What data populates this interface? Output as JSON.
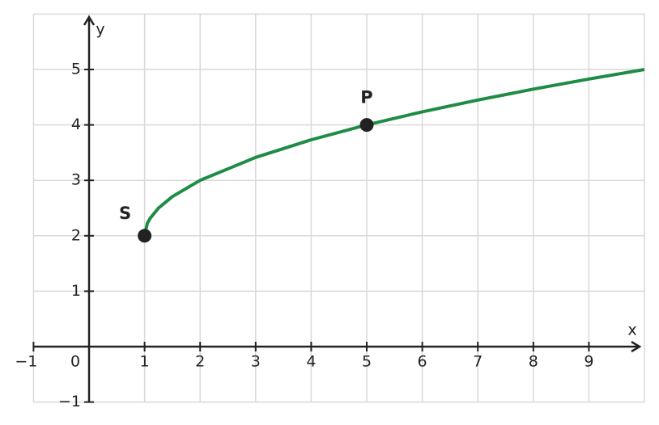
{
  "chart_data": {
    "type": "line",
    "x_label": "x",
    "y_label": "y",
    "x": [
      1,
      1.05,
      1.1,
      1.25,
      1.5,
      2,
      3,
      4,
      5,
      6,
      7,
      8,
      9,
      10
    ],
    "values": [
      2,
      2.224,
      2.316,
      2.5,
      2.707,
      3,
      3.414,
      3.732,
      4,
      4.236,
      4.449,
      4.646,
      4.828,
      5
    ],
    "color": "#1e8c45",
    "points": [
      {
        "label": "S",
        "x": 1,
        "y": 2
      },
      {
        "label": "P",
        "x": 5,
        "y": 4
      }
    ],
    "xlim": [
      -1,
      10
    ],
    "ylim": [
      -1,
      6
    ],
    "xticks": [
      {
        "value": -1,
        "label": "−1"
      },
      0,
      1,
      2,
      3,
      4,
      5,
      6,
      7,
      8,
      9
    ],
    "yticks": [
      {
        "value": -1,
        "label": "−1"
      },
      1,
      2,
      3,
      4,
      5
    ],
    "grid": true
  }
}
